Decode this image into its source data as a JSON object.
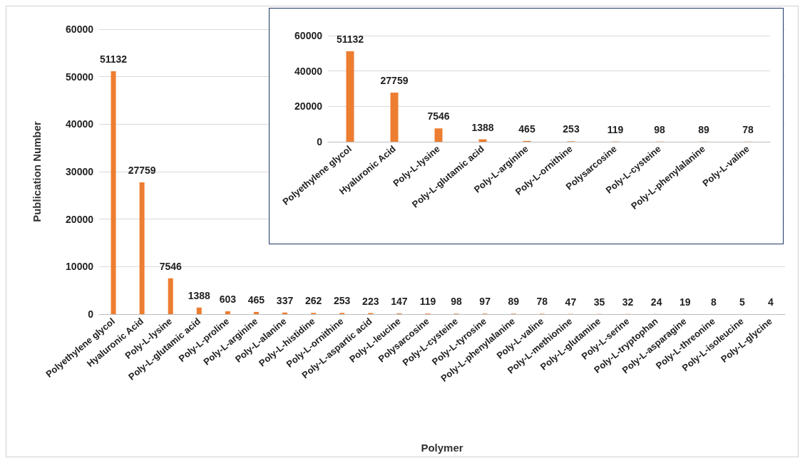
{
  "chart_data": [
    {
      "type": "bar",
      "xlabel": "Polymer",
      "ylabel": "Publication Number",
      "categories": [
        "Polyethylene glycol",
        "Hyaluronic Acid",
        "Poly-L-lysine",
        "Poly-L-glutamic acid",
        "Poly-L-proline",
        "Poly-L-arginine",
        "Poly-L-alanine",
        "Poly-L-histidine",
        "Poly-L-ornithine",
        "Poly-L-aspartic acid",
        "Poly-L-leucine",
        "Polysarcosine",
        "Poly-L-cysteine",
        "Poly-L-tyrosine",
        "Poly-L-phenylalanine",
        "Poly-L-valine",
        "Poly-L-methionine",
        "Poly-L-glutamine",
        "Poly-L-serine",
        "Poly-L-tryptophan",
        "Poly-L-asparagine",
        "Poly-L-threonine",
        "Poly-L-isoleucine",
        "Poly-L-glycine"
      ],
      "values": [
        51132,
        27759,
        7546,
        1388,
        603,
        465,
        337,
        262,
        253,
        223,
        147,
        119,
        98,
        97,
        89,
        78,
        47,
        35,
        32,
        24,
        19,
        8,
        5,
        4
      ],
      "color": "#ed7d31",
      "data_labels": true,
      "ylim": [
        0,
        60000
      ],
      "yticks": [
        0,
        10000,
        20000,
        30000,
        40000,
        50000,
        60000
      ],
      "grid": "y"
    },
    {
      "type": "bar",
      "categories": [
        "Polyethylene glycol",
        "Hyaluronic Acid",
        "Poly-L-lysine",
        "Poly-L-glutamic acid",
        "Poly-L-arginine",
        "Poly-L-ornithine",
        "Polysarcosine",
        "Poly-L-cysteine",
        "Poly-L-phenylalanine",
        "Poly-L-valine"
      ],
      "values": [
        51132,
        27759,
        7546,
        1388,
        465,
        253,
        119,
        98,
        89,
        78
      ],
      "color": "#ed7d31",
      "data_labels": true,
      "ylim": [
        0,
        60000
      ],
      "yticks": [
        0,
        20000,
        40000,
        60000
      ],
      "grid": "y"
    }
  ]
}
